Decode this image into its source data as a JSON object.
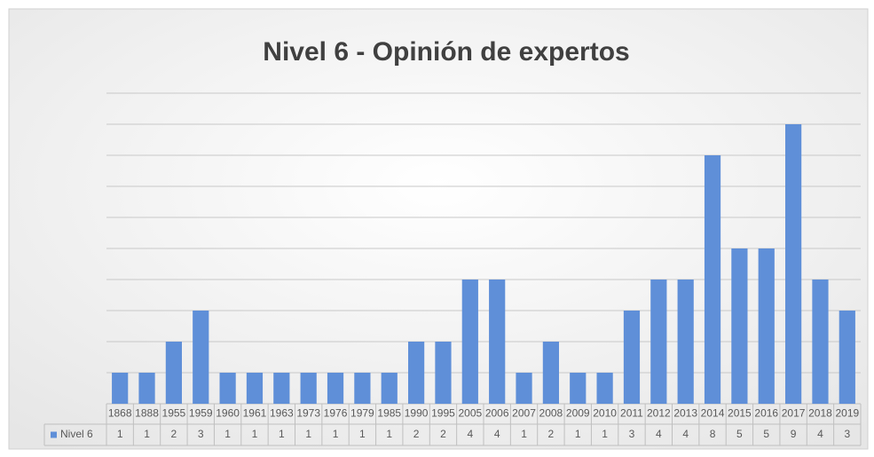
{
  "chart_data": {
    "type": "bar",
    "title": "Nivel 6 - Opinión de expertos",
    "categories": [
      "1868",
      "1888",
      "1955",
      "1959",
      "1960",
      "1961",
      "1963",
      "1973",
      "1976",
      "1979",
      "1985",
      "1990",
      "1995",
      "2005",
      "2006",
      "2007",
      "2008",
      "2009",
      "2010",
      "2011",
      "2012",
      "2013",
      "2014",
      "2015",
      "2016",
      "2017",
      "2018",
      "2019"
    ],
    "series": [
      {
        "name": "Nivel 6",
        "color": "#5f8fd8",
        "values": [
          1,
          1,
          2,
          3,
          1,
          1,
          1,
          1,
          1,
          1,
          1,
          2,
          2,
          4,
          4,
          1,
          2,
          1,
          1,
          3,
          4,
          4,
          8,
          5,
          5,
          9,
          4,
          3
        ]
      }
    ],
    "ylim": [
      0,
      10
    ],
    "yticks": [
      0,
      1,
      2,
      3,
      4,
      5,
      6,
      7,
      8,
      9,
      10
    ],
    "grid": true
  }
}
